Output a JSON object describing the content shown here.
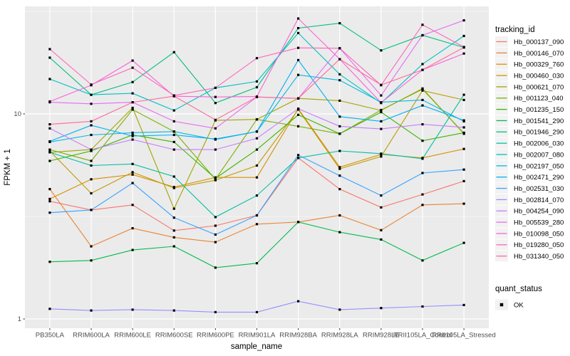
{
  "chart_data": {
    "type": "line",
    "title": "",
    "xlabel": "sample_name",
    "ylabel": "FPKM + 1",
    "y_scale": "log10",
    "y_ticks": [
      1,
      10
    ],
    "y_tick_labels": [
      "1",
      "10"
    ],
    "y_minor_breaks": [
      3.162,
      31.623
    ],
    "ylim": [
      0.9,
      33.4
    ],
    "grid": true,
    "legend_position": "right",
    "legend_title": "tracking_id",
    "legend2_title": "quant_status",
    "legend2_items": [
      {
        "label": "OK",
        "marker": "black-square"
      }
    ],
    "x_categories": [
      "PB350LA",
      "RRIM600LA",
      "RRIM600LE",
      "RRIM600SE",
      "RRIM600PE",
      "RRIM901LA",
      "RRIM928BA",
      "RRIM928LA",
      "RRIM928LE",
      "RRII105LA_Control",
      "RRII105LA_Stressed"
    ],
    "colors": {
      "panel_bg": "#EBEBEB",
      "grid": "#FFFFFF",
      "point": "#000000",
      "tick_text": "#4D4D4D",
      "tick_mark": "#333333",
      "legend_key_bg": "#F2F2F2"
    },
    "series": [
      {
        "name": "Hb_000137_090",
        "color": "#F8766D",
        "values": [
          3.75,
          3.4,
          3.6,
          2.7,
          2.85,
          3.2,
          6.1,
          4.3,
          3.5,
          4.05,
          4.7
        ]
      },
      {
        "name": "Hb_000146_070",
        "color": "#EA8331",
        "values": [
          4.3,
          2.26,
          2.77,
          2.5,
          2.37,
          2.9,
          2.97,
          3.2,
          2.71,
          3.6,
          3.65
        ]
      },
      {
        "name": "Hb_000329_760",
        "color": "#D89000",
        "values": [
          3.85,
          4.8,
          5.06,
          4.4,
          4.9,
          4.9,
          10.6,
          5.5,
          6.35,
          6.1,
          6.75
        ]
      },
      {
        "name": "Hb_000460_030",
        "color": "#C09B00",
        "values": [
          6.6,
          4.1,
          5.2,
          4.35,
          4.75,
          5.6,
          10.5,
          5.4,
          6.2,
          13.0,
          11.7
        ]
      },
      {
        "name": "Hb_000621_070",
        "color": "#A3A500",
        "values": [
          6.5,
          6.7,
          10.7,
          3.45,
          9.3,
          9.4,
          11.9,
          11.6,
          10.4,
          13.3,
          8.0
        ]
      },
      {
        "name": "Hb_001123_040",
        "color": "#7CAE00",
        "values": [
          6.7,
          5.9,
          10.5,
          8.2,
          4.8,
          9.4,
          8.7,
          8.0,
          10.45,
          13.2,
          8.05
        ]
      },
      {
        "name": "Hb_001235_150",
        "color": "#39B600",
        "values": [
          5.9,
          6.6,
          7.9,
          7.3,
          4.85,
          6.7,
          9.9,
          8.0,
          10.2,
          7.4,
          8.1
        ]
      },
      {
        "name": "Hb_001541_290",
        "color": "#00BB4E",
        "values": [
          1.9,
          1.93,
          2.17,
          2.26,
          1.78,
          1.87,
          2.97,
          2.65,
          2.44,
          1.93,
          2.35
        ]
      },
      {
        "name": "Hb_001946_290",
        "color": "#00BF7D",
        "values": [
          18.8,
          12.4,
          14.3,
          20.0,
          11.3,
          13.5,
          26.2,
          27.7,
          20.4,
          24.2,
          21.1
        ]
      },
      {
        "name": "Hb_002006_030",
        "color": "#00C1A3",
        "values": [
          6.5,
          5.6,
          5.7,
          4.95,
          3.14,
          4.0,
          6.1,
          6.6,
          6.4,
          6.05,
          12.4
        ]
      },
      {
        "name": "Hb_002007_080",
        "color": "#00BFC4",
        "values": [
          14.8,
          12.4,
          12.6,
          10.4,
          13.4,
          14.4,
          24.8,
          15.6,
          11.3,
          17.5,
          24.0
        ]
      },
      {
        "name": "Hb_002197_050",
        "color": "#00BAE0",
        "values": [
          7.3,
          7.9,
          8.1,
          8.2,
          7.5,
          8.2,
          15.5,
          14.6,
          11.4,
          11.7,
          9.2
        ]
      },
      {
        "name": "Hb_002471_290",
        "color": "#00B0F6",
        "values": [
          7.35,
          8.8,
          7.8,
          7.9,
          7.55,
          8.2,
          18.3,
          9.7,
          9.2,
          11.0,
          9.3
        ]
      },
      {
        "name": "Hb_002531_030",
        "color": "#35A2FF",
        "values": [
          3.3,
          3.4,
          4.6,
          3.12,
          2.58,
          3.2,
          6.3,
          5.0,
          4.0,
          5.15,
          5.35
        ]
      },
      {
        "name": "Hb_002814_070",
        "color": "#9590FF",
        "values": [
          1.12,
          1.1,
          1.11,
          1.1,
          1.08,
          1.08,
          1.22,
          1.11,
          1.13,
          1.15,
          1.17
        ]
      },
      {
        "name": "Hb_004254_090",
        "color": "#C77CFF",
        "values": [
          8.5,
          6.7,
          7.5,
          6.7,
          6.7,
          7.6,
          10.6,
          8.7,
          8.45,
          8.9,
          8.6
        ]
      },
      {
        "name": "Hb_005539_280",
        "color": "#E76BF3",
        "values": [
          11.4,
          11.2,
          11.4,
          9.2,
          8.5,
          12.1,
          11.9,
          20.9,
          12.3,
          24.2,
          28.6
        ]
      },
      {
        "name": "Hb_010098_050",
        "color": "#FA62DB",
        "values": [
          11.5,
          13.8,
          18.2,
          12.2,
          12.1,
          12.15,
          29.2,
          18.5,
          11.35,
          16.4,
          19.7
        ]
      },
      {
        "name": "Hb_019280_050",
        "color": "#FF62BC",
        "values": [
          20.7,
          13.9,
          16.8,
          12.3,
          13.4,
          18.7,
          21.0,
          20.9,
          13.8,
          27.2,
          21.2
        ]
      },
      {
        "name": "Hb_031340_050",
        "color": "#FF6A98",
        "values": [
          8.9,
          9.2,
          11.4,
          12.2,
          9.35,
          12.1,
          11.9,
          18.5,
          13.85,
          16.4,
          21.1
        ]
      }
    ]
  }
}
